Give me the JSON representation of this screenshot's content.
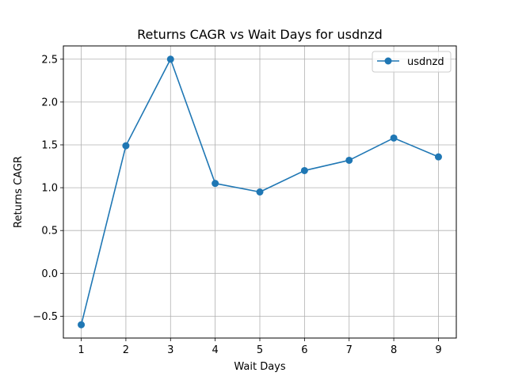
{
  "chart_data": {
    "type": "line",
    "title": "Returns CAGR vs Wait Days for usdnzd",
    "xlabel": "Wait Days",
    "ylabel": "Returns CAGR",
    "x": [
      1,
      2,
      3,
      4,
      5,
      6,
      7,
      8,
      9
    ],
    "series": [
      {
        "name": "usdnzd",
        "values": [
          -0.6,
          1.49,
          2.5,
          1.05,
          0.95,
          1.2,
          1.32,
          1.58,
          1.36
        ]
      }
    ],
    "x_ticks": [
      1,
      2,
      3,
      4,
      5,
      6,
      7,
      8,
      9
    ],
    "y_ticks": [
      -0.5,
      0.0,
      0.5,
      1.0,
      1.5,
      2.0,
      2.5
    ],
    "y_tick_labels": [
      "−0.5",
      "0.0",
      "0.5",
      "1.0",
      "1.5",
      "2.0",
      "2.5"
    ],
    "xlim": [
      0.6,
      9.4
    ],
    "ylim": [
      -0.755,
      2.655
    ],
    "grid": true,
    "legend": "upper right",
    "colors": {
      "series": "#1f77b4",
      "grid": "#b0b0b0",
      "axes": "#000000"
    }
  }
}
